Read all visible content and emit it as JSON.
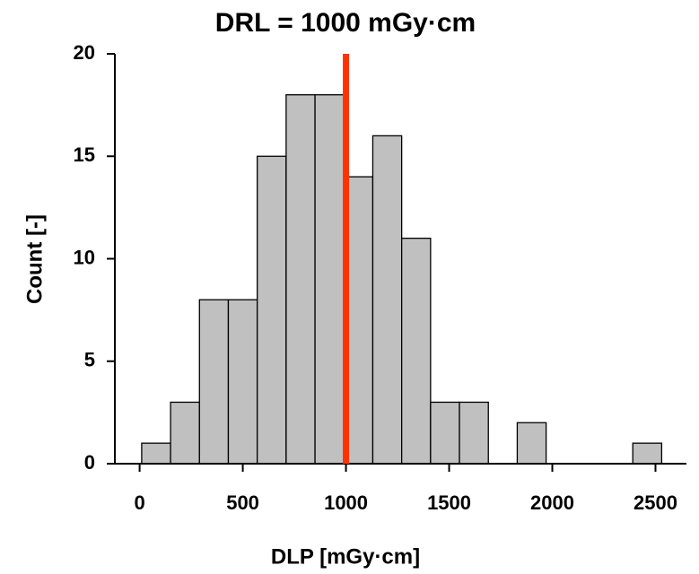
{
  "chart_data": {
    "type": "histogram",
    "bins": [
      10,
      150,
      290,
      430,
      570,
      710,
      850,
      990,
      1130,
      1270,
      1410,
      1550,
      1690,
      1830,
      1970,
      2110,
      2250,
      2390,
      2530
    ],
    "counts": [
      1,
      3,
      8,
      8,
      15,
      18,
      18,
      14,
      16,
      11,
      3,
      3,
      0,
      2,
      0,
      0,
      0,
      1
    ],
    "color": "#c0c0c0",
    "xlabel": "DLP [mGy·cm]",
    "ylabel": "Count [-]",
    "xlim": [
      -120,
      2650
    ],
    "xticks": [
      0,
      500,
      1000,
      1500,
      2000,
      2500
    ],
    "ylim": [
      0,
      20
    ],
    "yticks": [
      0,
      5,
      10,
      15,
      20
    ],
    "reference_line": {
      "value": 1000,
      "label": "DRL = 1000 mGy·cm",
      "color": "#ff3300"
    }
  }
}
